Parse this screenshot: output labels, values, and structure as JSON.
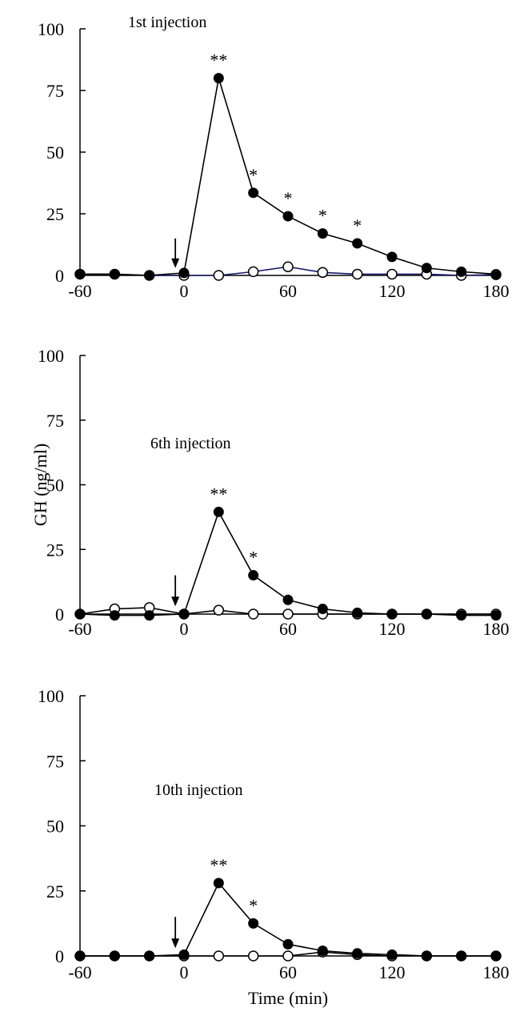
{
  "chart_data": [
    {
      "type": "line",
      "title": "1st injection",
      "xlabel": "",
      "ylabel": "",
      "xlim": [
        -60,
        180
      ],
      "ylim": [
        0,
        100
      ],
      "x_ticks": [
        -60,
        0,
        60,
        120,
        180
      ],
      "y_ticks": [
        0,
        25,
        50,
        75,
        100
      ],
      "grid": false,
      "legend": "none",
      "x": [
        -60,
        -40,
        -20,
        0,
        20,
        40,
        60,
        80,
        100,
        120,
        140,
        160,
        180
      ],
      "series": [
        {
          "marker": "filled",
          "color": "#000000",
          "values": [
            0.5,
            0.5,
            0,
            1,
            80,
            33.5,
            24,
            17,
            13,
            7.5,
            3,
            1.5,
            0.5
          ]
        },
        {
          "marker": "open",
          "color": "#1a1a6e",
          "values": [
            0.5,
            0.5,
            0,
            0,
            0,
            1.5,
            3.5,
            1.2,
            0.5,
            0.5,
            0.5,
            0,
            0.3
          ]
        }
      ],
      "annotations": [
        {
          "x": 20,
          "text": "**"
        },
        {
          "x": 40,
          "text": "*"
        },
        {
          "x": 60,
          "text": "*"
        },
        {
          "x": 80,
          "text": "*"
        },
        {
          "x": 100,
          "text": "*"
        }
      ],
      "arrow_x": -5
    },
    {
      "type": "line",
      "title": "6th injection",
      "xlabel": "",
      "ylabel": "GH (ng/ml)",
      "xlim": [
        -60,
        180
      ],
      "ylim": [
        0,
        100
      ],
      "x_ticks": [
        -60,
        0,
        60,
        120,
        180
      ],
      "y_ticks": [
        0,
        25,
        50,
        75,
        100
      ],
      "grid": false,
      "legend": "none",
      "x": [
        -60,
        -40,
        -20,
        0,
        20,
        40,
        60,
        80,
        100,
        120,
        140,
        160,
        180
      ],
      "series": [
        {
          "marker": "filled",
          "color": "#000000",
          "values": [
            0,
            -0.5,
            -0.5,
            0,
            39.5,
            15,
            5.5,
            2,
            0.5,
            0,
            0,
            -0.5,
            -0.5
          ]
        },
        {
          "marker": "open",
          "color": "#000000",
          "values": [
            0,
            2,
            2.5,
            0,
            1.5,
            0,
            0,
            0,
            0,
            0,
            0,
            0,
            0
          ]
        }
      ],
      "annotations": [
        {
          "x": 20,
          "text": "**"
        },
        {
          "x": 40,
          "text": "*"
        }
      ],
      "arrow_x": -5
    },
    {
      "type": "line",
      "title": "10th injection",
      "xlabel": "Time (min)",
      "ylabel": "",
      "xlim": [
        -60,
        180
      ],
      "ylim": [
        0,
        100
      ],
      "x_ticks": [
        -60,
        0,
        60,
        120,
        180
      ],
      "y_ticks": [
        0,
        25,
        50,
        75,
        100
      ],
      "grid": false,
      "legend": "none",
      "x": [
        -60,
        -40,
        -20,
        0,
        20,
        40,
        60,
        80,
        100,
        120,
        140,
        160,
        180
      ],
      "series": [
        {
          "marker": "filled",
          "color": "#000000",
          "values": [
            0,
            0,
            0,
            0.5,
            28,
            12.5,
            4.5,
            2,
            1,
            0.5,
            0,
            0,
            0
          ]
        },
        {
          "marker": "open",
          "color": "#000000",
          "values": [
            0,
            0,
            0,
            0,
            0,
            0,
            0,
            1.5,
            0.5,
            0,
            0,
            0,
            0
          ]
        }
      ],
      "annotations": [
        {
          "x": 20,
          "text": "**"
        },
        {
          "x": 40,
          "text": "*"
        }
      ],
      "arrow_x": -5
    }
  ]
}
